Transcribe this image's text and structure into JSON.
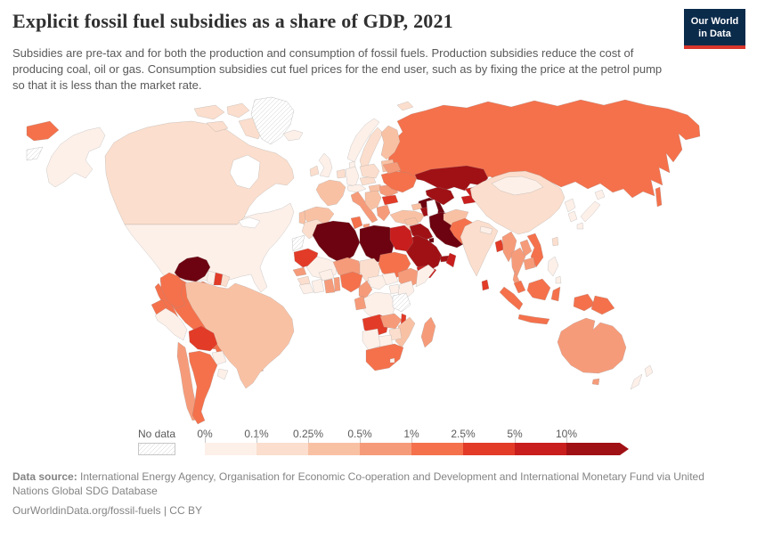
{
  "header": {
    "title": "Explicit fossil fuel subsidies as a share of GDP, 2021",
    "subtitle": "Subsidies are pre-tax and for both the production and consumption of fossil fuels. Production subsidies reduce the cost of producing coal, oil or gas. Consumption subsidies cut fuel prices for the end user, such as by fixing the price at the petrol pump so that it is less than the market rate."
  },
  "logo": {
    "line1": "Our World",
    "line2": "in Data",
    "bg_color": "#0b2b4b",
    "accent_color": "#d8352b"
  },
  "legend": {
    "no_data_label": "No data",
    "ticks": [
      "0%",
      "0.1%",
      "0.25%",
      "0.5%",
      "1%",
      "2.5%",
      "5%",
      "10%"
    ],
    "palette": [
      "#fdf0e9",
      "#fbdecd",
      "#f9c1a4",
      "#f69b7a",
      "#f4714c",
      "#e23b28",
      "#c81e1d",
      "#a01115"
    ],
    "darkest": "#6d0310"
  },
  "chart_data": {
    "type": "heatmap",
    "subtype": "choropleth-world-map",
    "title": "Explicit fossil fuel subsidies as a share of GDP, 2021",
    "legend_bins": [
      "0%",
      "0.1%",
      "0.25%",
      "0.5%",
      "1%",
      "2.5%",
      "5%",
      "10%"
    ],
    "legend_position": "bottom",
    "no_data_label": "No data",
    "countries": {
      "russia": 4,
      "svalbard": 1,
      "canada": 1,
      "greenland": "nd",
      "alaska": 0,
      "usa": 0,
      "mexico": 4,
      "guatemala": 4,
      "belize": 1,
      "honduras": 1,
      "nicaragua": 1,
      "costa-rica": 0,
      "panama": 3,
      "cuba": 2,
      "hispaniola": 3,
      "jamaica": 2,
      "puerto-rico": 3,
      "trinidad": 6,
      "venezuela": "max",
      "colombia": 4,
      "guyana": 0,
      "suriname": 5,
      "french-guiana": 1,
      "ecuador": 4,
      "peru": 0,
      "brazil": 2,
      "bolivia": 5,
      "paraguay": 0,
      "chile": 3,
      "argentina": 4,
      "uruguay": 0,
      "iceland": 0,
      "norway": 0,
      "sweden": 1,
      "finland": 2,
      "baltics": 2,
      "denmark": 0,
      "uk": 0,
      "ireland": 1,
      "benelux": 1,
      "germany": 0,
      "france": 2,
      "spain": 2,
      "portugal": 2,
      "alpine": 0,
      "italy": 3,
      "czech-slovakia": 1,
      "poland": 1,
      "hungary": 2,
      "balkans": 2,
      "romania": 3,
      "bulgaria": 5,
      "greece": 3,
      "ukraine": 4,
      "belarus": 3,
      "turkey": 2,
      "georgia": 2,
      "azerbaijan": 7,
      "kazakhstan": 7,
      "uzbekistan": 7,
      "turkmenistan": "max",
      "kyrgyzstan": 6,
      "tajikistan": 6,
      "syria": 2,
      "levant": 1,
      "iraq": 7,
      "iran": "max",
      "kuwait": "max",
      "saudi-arabia": 7,
      "uae": 7,
      "oman": 6,
      "yemen": 6,
      "morocco": 1,
      "western-sahara": "nd",
      "algeria": "max",
      "tunisia": 4,
      "libya": "max",
      "egypt": 6,
      "mauritania": 5,
      "mali": 0,
      "niger": 3,
      "chad": 1,
      "sudan": 4,
      "senegal": 3,
      "guinea": 1,
      "sierra-liberia": 0,
      "ivory-coast": 0,
      "burkina": 0,
      "ghana": 3,
      "benin-togo": 3,
      "nigeria": 4,
      "cameroon": 3,
      "car": 0,
      "south-sudan": 0,
      "ethiopia": 3,
      "somalia": 0,
      "uganda": 0,
      "kenya": 0,
      "drc": 0,
      "gabon-congo": 3,
      "tanzania": "nd",
      "angola": 5,
      "zambia": 3,
      "malawi": 5,
      "mozambique": 2,
      "zimbabwe": 1,
      "botswana": 0,
      "namibia": 0,
      "south-africa": 4,
      "lesotho": 0,
      "madagascar": 3,
      "china": 1,
      "mongolia": 0,
      "india": 1,
      "nepal": 0,
      "bangladesh": 5,
      "sri-lanka": 5,
      "myanmar": 3,
      "thailand": 3,
      "laos": 3,
      "vietnam": 4,
      "cambodia": 3,
      "malaysia": 4,
      "indonesia": 4,
      "png": 4,
      "philippines": 0,
      "taiwan": 1,
      "japan": 0,
      "south-korea": 0,
      "north-korea": 0,
      "pakistan": 4,
      "afghanistan": 2,
      "sakhalin": 4,
      "australia": 3,
      "tasmania": 3,
      "new-zealand": 0,
      "nodata-sliver": "nd"
    }
  },
  "footer": {
    "source_label": "Data source:",
    "source_text": " International Energy Agency, Organisation for Economic Co-operation and Development and International Monetary Fund via United Nations Global SDG Database",
    "link_text": "OurWorldinData.org/fossil-fuels | CC BY"
  }
}
